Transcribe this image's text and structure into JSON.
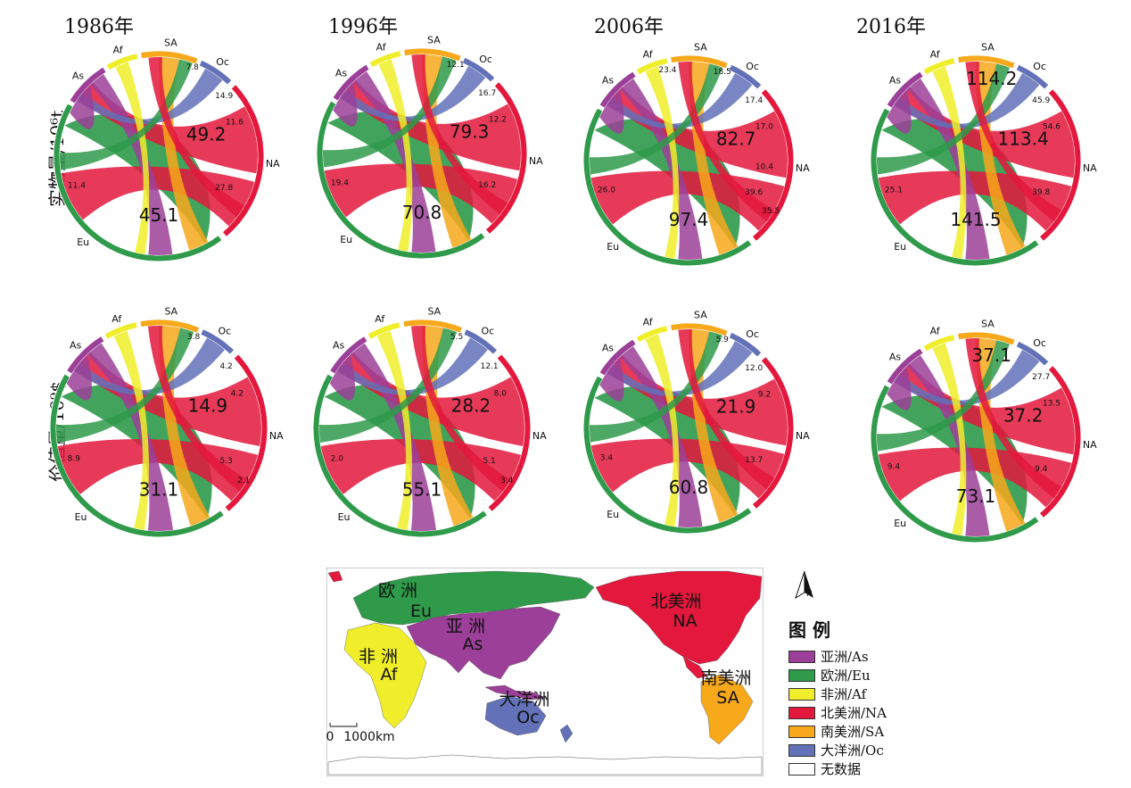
{
  "years": [
    "1986年",
    "1996年",
    "2006年",
    "2016年"
  ],
  "row_labels": {
    "quantity": "实物量/10⁶t",
    "value": "价值量/10⁹$"
  },
  "region_codes": [
    "Af",
    "SA",
    "Oc",
    "NA",
    "Eu",
    "As"
  ],
  "colors": {
    "As": "#9b3f98",
    "Eu": "#2e9a4a",
    "Af": "#f0ee2a",
    "NA": "#e3183c",
    "SA": "#f7a81b",
    "Oc": "#6271b8"
  },
  "diagrams": [
    {
      "big": [
        {
          "t": "49.2",
          "k": "NA"
        },
        {
          "t": "45.1",
          "k": "Eu"
        }
      ],
      "small": [
        {
          "t": "14.9"
        },
        {
          "t": "11.6"
        },
        {
          "t": "27.8"
        },
        {
          "t": "11.4"
        },
        {
          "t": "7.8"
        }
      ]
    },
    {
      "big": [
        {
          "t": "79.3",
          "k": "NA"
        },
        {
          "t": "70.8",
          "k": "Eu"
        }
      ],
      "small": [
        {
          "t": "16.7"
        },
        {
          "t": "12.2"
        },
        {
          "t": "16.2"
        },
        {
          "t": "19.4"
        },
        {
          "t": "12.1"
        }
      ]
    },
    {
      "big": [
        {
          "t": "82.7",
          "k": "NA"
        },
        {
          "t": "97.4",
          "k": "Eu"
        }
      ],
      "small": [
        {
          "t": "17.4"
        },
        {
          "t": "17.0"
        },
        {
          "t": "39.6"
        },
        {
          "t": "26.0"
        },
        {
          "t": "18.5"
        },
        {
          "t": "35.5"
        },
        {
          "t": "10.4"
        },
        {
          "t": "23.4"
        }
      ]
    },
    {
      "big": [
        {
          "t": "114.2",
          "k": "SA"
        },
        {
          "t": "113.4",
          "k": "NA"
        },
        {
          "t": "141.5",
          "k": "Eu"
        }
      ],
      "small": [
        {
          "t": "45.9"
        },
        {
          "t": "54.6"
        },
        {
          "t": "39.8"
        },
        {
          "t": "25.1"
        }
      ]
    },
    {
      "big": [
        {
          "t": "14.9",
          "k": "NA"
        },
        {
          "t": "31.1",
          "k": "Eu"
        }
      ],
      "small": [
        {
          "t": "4.2"
        },
        {
          "t": "4.2"
        },
        {
          "t": "5.3"
        },
        {
          "t": "8.9"
        },
        {
          "t": "3.8"
        },
        {
          "t": "2.1"
        }
      ]
    },
    {
      "big": [
        {
          "t": "28.2",
          "k": "NA"
        },
        {
          "t": "55.1",
          "k": "Eu"
        }
      ],
      "small": [
        {
          "t": "12.1"
        },
        {
          "t": "8.0"
        },
        {
          "t": "5.1"
        },
        {
          "t": "2.0"
        },
        {
          "t": "5.5"
        },
        {
          "t": "3.4"
        }
      ]
    },
    {
      "big": [
        {
          "t": "21.9",
          "k": "NA"
        },
        {
          "t": "60.8",
          "k": "Eu"
        }
      ],
      "small": [
        {
          "t": "12.0"
        },
        {
          "t": "9.2"
        },
        {
          "t": "13.7"
        },
        {
          "t": "3.4"
        },
        {
          "t": "5.9"
        }
      ]
    },
    {
      "big": [
        {
          "t": "37.1",
          "k": "SA"
        },
        {
          "t": "37.2",
          "k": "NA"
        },
        {
          "t": "73.1",
          "k": "Eu"
        }
      ],
      "small": [
        {
          "t": "27.7"
        },
        {
          "t": "13.5"
        },
        {
          "t": "9.4"
        },
        {
          "t": "9.4"
        }
      ]
    }
  ],
  "map": {
    "labels": [
      {
        "text": "欧  洲",
        "sub": "Eu"
      },
      {
        "text": "亚  洲",
        "sub": "As"
      },
      {
        "text": "非  洲",
        "sub": "Af"
      },
      {
        "text": "大洋洲",
        "sub": "Oc"
      },
      {
        "text": "北美洲",
        "sub": "NA"
      },
      {
        "text": "南美洲",
        "sub": "SA"
      }
    ],
    "scale": "1000km",
    "scale_zero": "0",
    "north": "N"
  },
  "legend": {
    "title": "图  例",
    "items": [
      {
        "label": "亚洲/As",
        "color": "#9b3f98"
      },
      {
        "label": "欧洲/Eu",
        "color": "#2e9a4a"
      },
      {
        "label": "非洲/Af",
        "color": "#f0ee2a"
      },
      {
        "label": "北美洲/NA",
        "color": "#e3183c"
      },
      {
        "label": "南美洲/SA",
        "color": "#f7a81b"
      },
      {
        "label": "大洋洲/Oc",
        "color": "#6271b8"
      },
      {
        "label": "无数据",
        "color": "#ffffff"
      }
    ]
  }
}
